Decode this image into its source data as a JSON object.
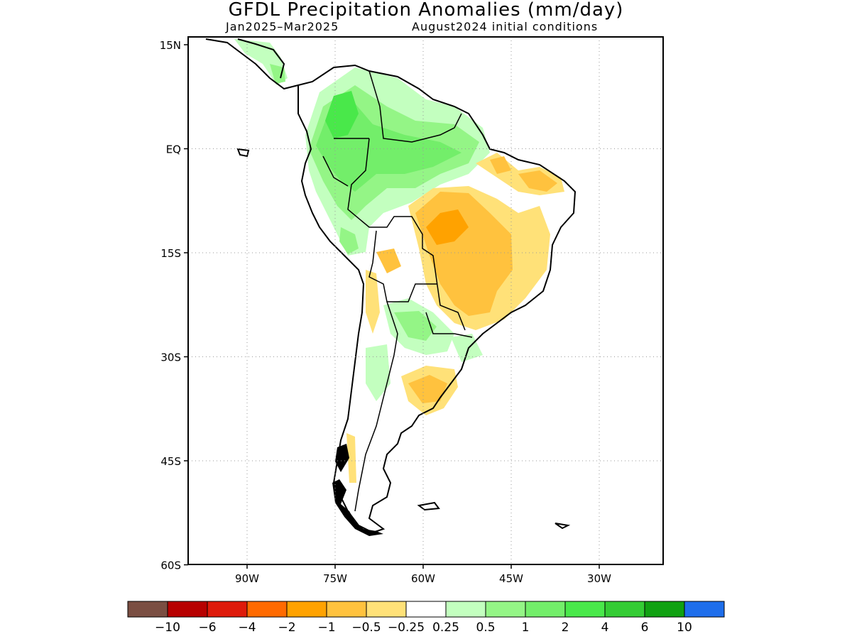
{
  "title": "GFDL Precipitation Anomalies (mm/day)",
  "subtitle_left": "Jan2025–Mar2025",
  "subtitle_right": "August2024 initial conditions",
  "map": {
    "lon_range": [
      -100,
      -20
    ],
    "lat_range": [
      -60,
      15
    ],
    "lat_ticks": [
      {
        "value": 15,
        "label": "15N"
      },
      {
        "value": 0,
        "label": "EQ"
      },
      {
        "value": -15,
        "label": "15S"
      },
      {
        "value": -30,
        "label": "30S"
      },
      {
        "value": -45,
        "label": "45S"
      },
      {
        "value": -60,
        "label": "60S"
      }
    ],
    "lon_ticks": [
      {
        "value": -90,
        "label": "90W"
      },
      {
        "value": -75,
        "label": "75W"
      },
      {
        "value": -60,
        "label": "60W"
      },
      {
        "value": -45,
        "label": "45W"
      },
      {
        "value": -30,
        "label": "30W"
      }
    ],
    "grid": "dotted"
  },
  "colorbar": {
    "colors": [
      "#7a4e42",
      "#b70000",
      "#de1a0a",
      "#ff6a00",
      "#ffa200",
      "#ffc23e",
      "#ffe178",
      "#ffffff",
      "#c3ffbf",
      "#94f586",
      "#73ee6a",
      "#49e84a",
      "#34cc34",
      "#10a111",
      "#1e6eeb"
    ],
    "labels": [
      "−10",
      "−6",
      "−4",
      "−2",
      "−1",
      "−0.5",
      "−0.25",
      "0.25",
      "0.5",
      "1",
      "2",
      "4",
      "6",
      "10"
    ]
  },
  "anomaly_regions": [
    {
      "name": "northern-amazon-wet",
      "level": "1",
      "color": "#73ee6a"
    },
    {
      "name": "colombia-wet",
      "level": "2",
      "color": "#49e84a"
    },
    {
      "name": "central-brazil-dry",
      "level": "-1",
      "color": "#ffc23e"
    },
    {
      "name": "central-brazil-core-dry",
      "level": "-2",
      "color": "#ffa200"
    },
    {
      "name": "northeast-brazil-dry",
      "level": "-0.5",
      "color": "#ffe178"
    },
    {
      "name": "argentina-dry",
      "level": "-1",
      "color": "#ffc23e"
    },
    {
      "name": "paraguay-wet",
      "level": "0.5",
      "color": "#c3ffbf"
    }
  ]
}
